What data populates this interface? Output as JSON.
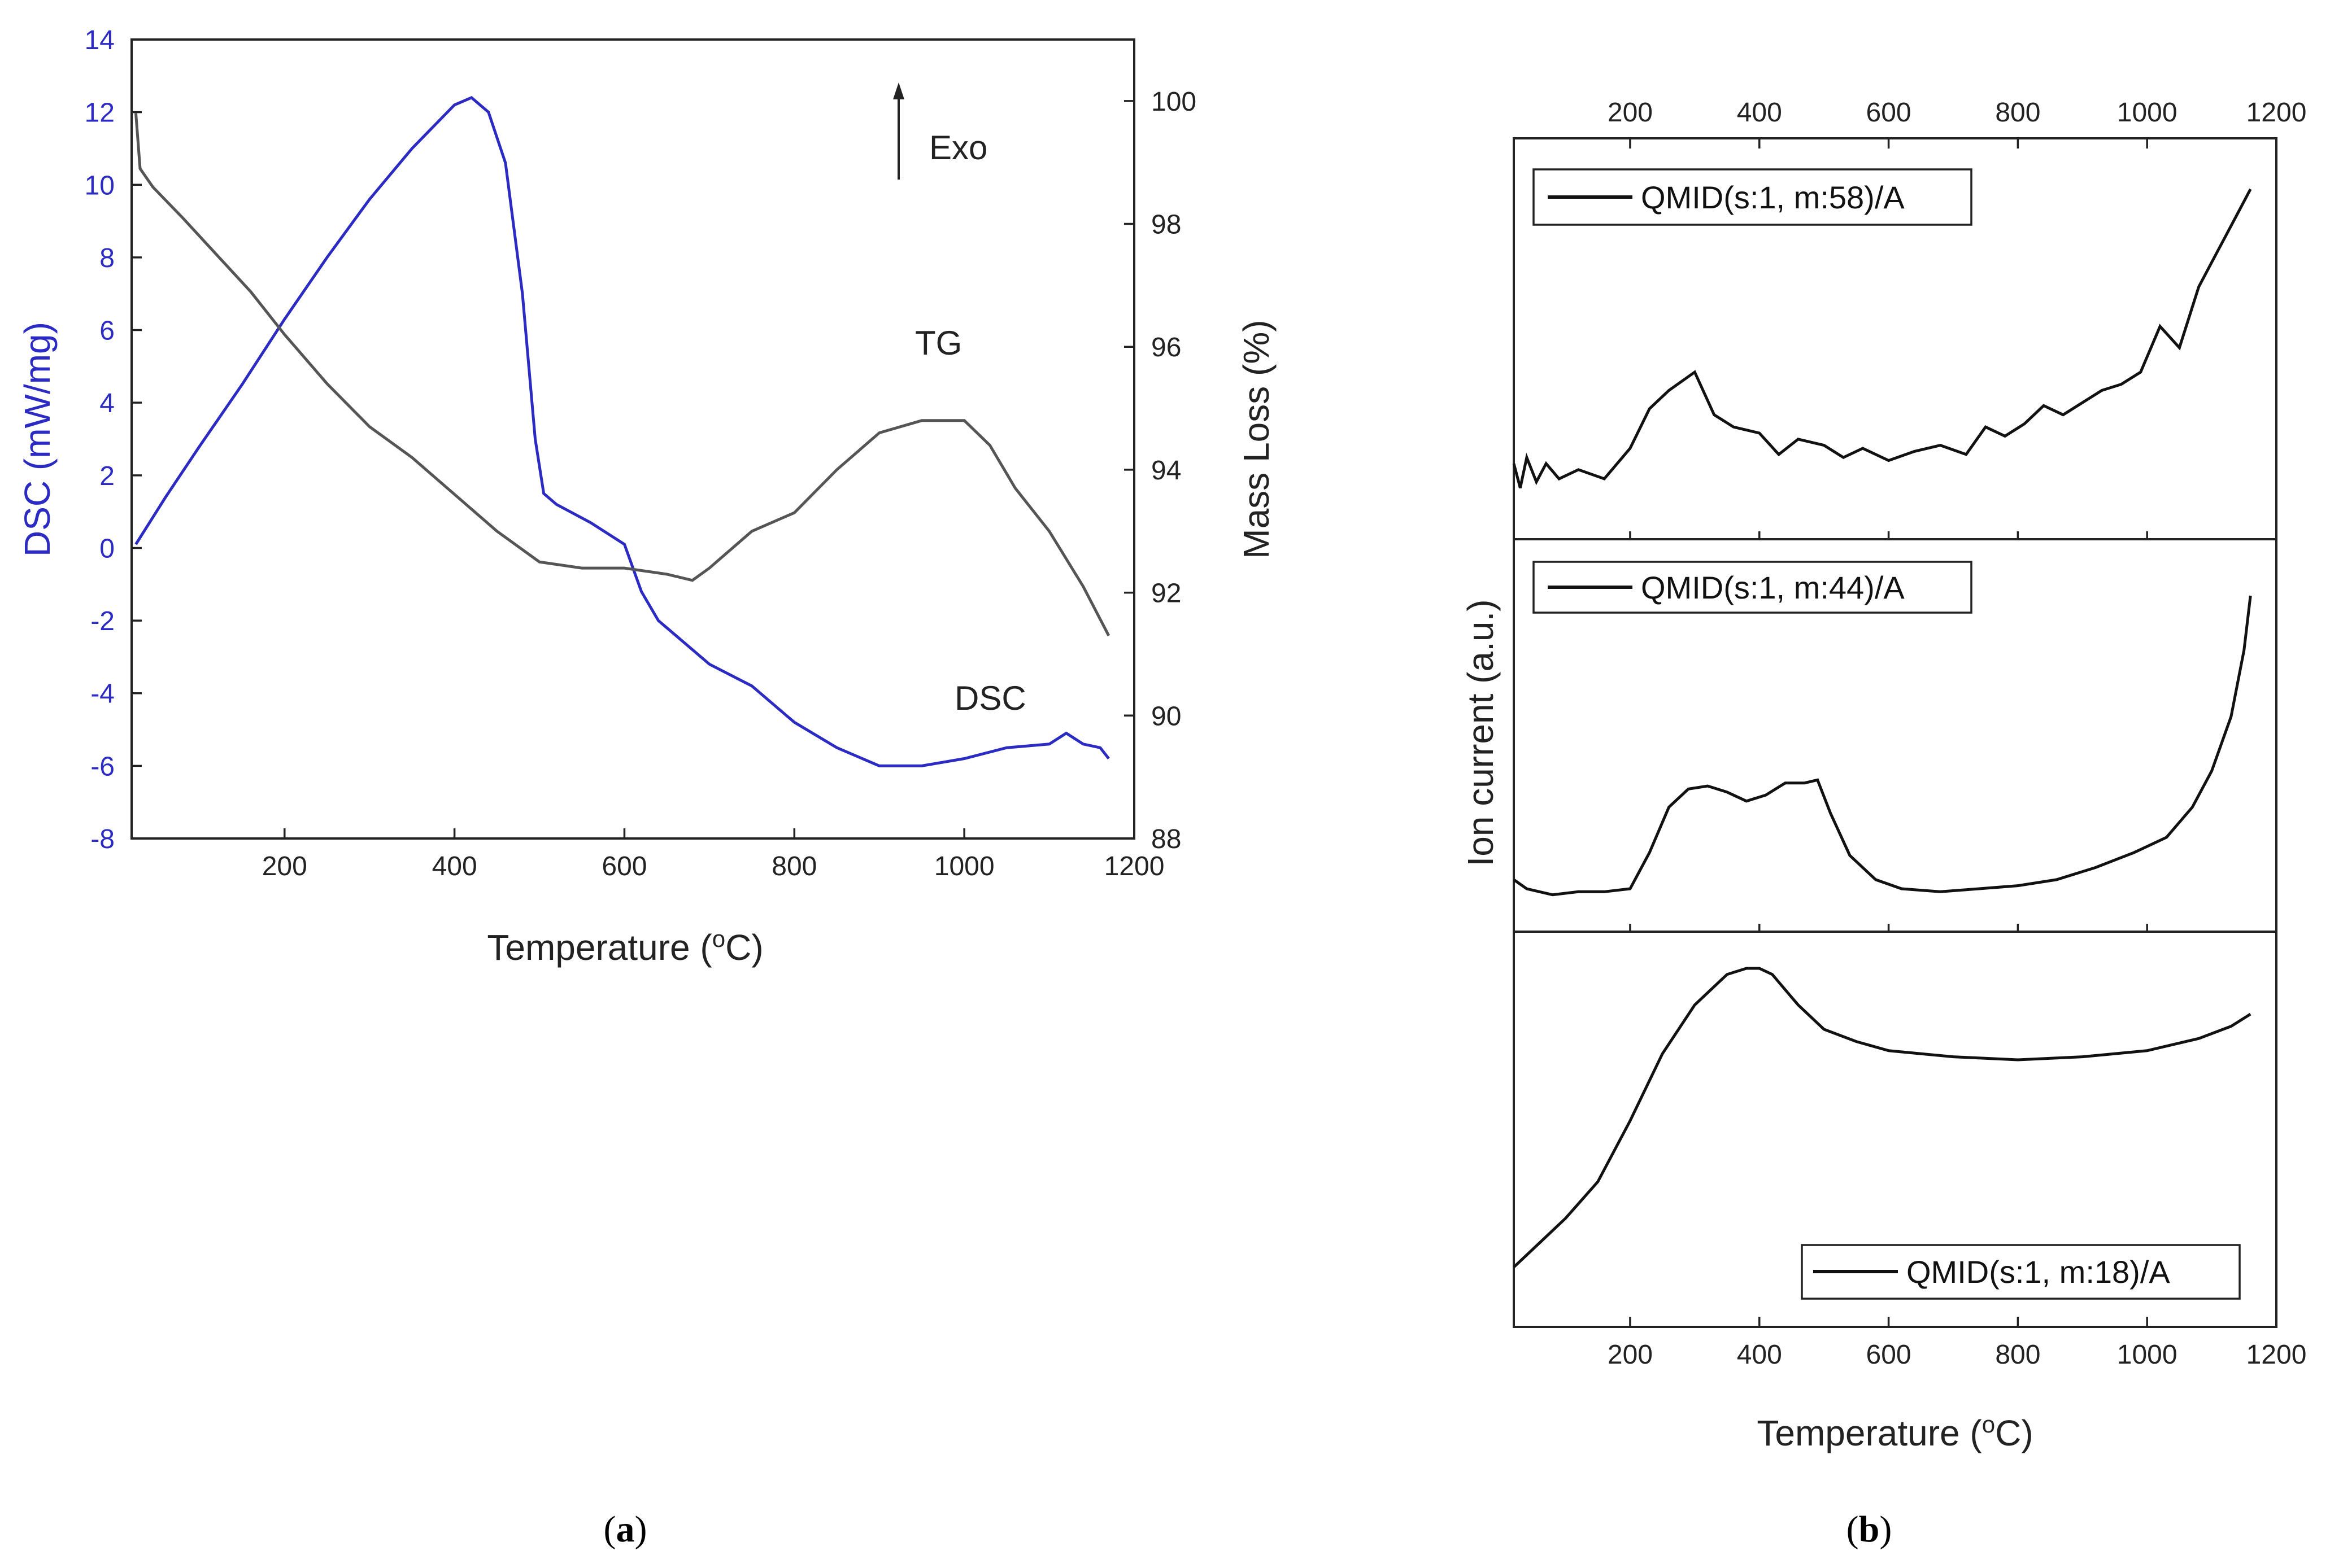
{
  "chart_data": [
    {
      "type": "line",
      "panel": "a",
      "caption": [
        "(",
        "a",
        ")"
      ],
      "xlabel": "Temperature (",
      "xlabel_sup": "o",
      "xlabel_end": "C)",
      "ylabel": "DSC (mW/mg)",
      "y2label": "Mass Loss (%)",
      "xlim": [
        20,
        1200
      ],
      "ylim": [
        -8,
        14
      ],
      "y2lim": [
        88,
        101
      ],
      "x_ticks": [
        200,
        400,
        600,
        800,
        1000,
        1200
      ],
      "y_ticks": [
        -8,
        -6,
        -4,
        -2,
        0,
        2,
        4,
        6,
        8,
        10,
        12,
        14
      ],
      "y2_ticks": [
        88,
        90,
        92,
        94,
        96,
        98,
        100
      ],
      "annotations": {
        "exo": "Exo",
        "tg": "TG",
        "dsc": "DSC"
      },
      "colors": {
        "dsc": "#2b2bc4",
        "tg": "#555555"
      },
      "series": [
        {
          "name": "DSC",
          "axis": "left",
          "x": [
            25,
            60,
            100,
            150,
            200,
            250,
            300,
            350,
            400,
            420,
            440,
            460,
            480,
            495,
            505,
            520,
            560,
            600,
            620,
            640,
            660,
            700,
            750,
            800,
            850,
            900,
            950,
            1000,
            1050,
            1100,
            1120,
            1140,
            1160,
            1170
          ],
          "values": [
            0.1,
            1.4,
            2.8,
            4.5,
            6.3,
            8.0,
            9.6,
            11.0,
            12.2,
            12.4,
            12.0,
            10.6,
            7.0,
            3.0,
            1.5,
            1.2,
            0.7,
            0.1,
            -1.2,
            -2.0,
            -2.4,
            -3.2,
            -3.8,
            -4.8,
            -5.5,
            -6.0,
            -6.0,
            -5.8,
            -5.5,
            -5.4,
            -5.1,
            -5.4,
            -5.5,
            -5.8
          ]
        },
        {
          "name": "TG",
          "axis": "right",
          "x": [
            25,
            30,
            45,
            80,
            120,
            160,
            200,
            250,
            300,
            350,
            400,
            450,
            500,
            550,
            600,
            650,
            680,
            700,
            750,
            800,
            850,
            900,
            950,
            1000,
            1030,
            1060,
            1100,
            1140,
            1170
          ],
          "values": [
            99.8,
            98.9,
            98.6,
            98.1,
            97.5,
            96.9,
            96.2,
            95.4,
            94.7,
            94.2,
            93.6,
            93.0,
            92.5,
            92.4,
            92.4,
            92.3,
            92.2,
            92.4,
            93.0,
            93.3,
            94.0,
            94.6,
            94.8,
            94.8,
            94.4,
            93.7,
            93.0,
            92.1,
            91.3
          ]
        }
      ]
    },
    {
      "type": "line",
      "panel": "b",
      "caption": [
        "(",
        "b",
        ")"
      ],
      "xlabel": "Temperature (",
      "xlabel_sup": "o",
      "xlabel_end": "C)",
      "ylabel": "Ion current (a.u.)",
      "xlim": [
        20,
        1200
      ],
      "x_ticks": [
        200,
        400,
        600,
        800,
        1000,
        1200
      ],
      "subplots": [
        {
          "legend": "QMID(s:1, m:58)/A",
          "legend_position": "top-left",
          "x": [
            20,
            30,
            40,
            55,
            70,
            90,
            120,
            160,
            200,
            230,
            260,
            300,
            330,
            360,
            400,
            430,
            460,
            500,
            530,
            560,
            600,
            640,
            680,
            720,
            750,
            780,
            810,
            840,
            870,
            900,
            930,
            960,
            990,
            1020,
            1050,
            1080,
            1110,
            1140,
            1160
          ],
          "values": [
            0.1,
            0.02,
            0.12,
            0.04,
            0.1,
            0.05,
            0.08,
            0.05,
            0.15,
            0.28,
            0.34,
            0.4,
            0.26,
            0.22,
            0.2,
            0.13,
            0.18,
            0.16,
            0.12,
            0.15,
            0.11,
            0.14,
            0.16,
            0.13,
            0.22,
            0.19,
            0.23,
            0.29,
            0.26,
            0.3,
            0.34,
            0.36,
            0.4,
            0.55,
            0.48,
            0.68,
            0.8,
            0.92,
            1.0
          ]
        },
        {
          "legend": "QMID(s:1, m:44)/A",
          "legend_position": "top-left",
          "x": [
            20,
            40,
            80,
            120,
            160,
            200,
            230,
            260,
            290,
            320,
            350,
            380,
            410,
            440,
            470,
            490,
            510,
            540,
            580,
            620,
            680,
            740,
            800,
            860,
            920,
            980,
            1030,
            1070,
            1100,
            1130,
            1150,
            1160
          ],
          "values": [
            0.06,
            0.03,
            0.01,
            0.02,
            0.02,
            0.03,
            0.15,
            0.3,
            0.36,
            0.37,
            0.35,
            0.32,
            0.34,
            0.38,
            0.38,
            0.39,
            0.28,
            0.14,
            0.06,
            0.03,
            0.02,
            0.03,
            0.04,
            0.06,
            0.1,
            0.15,
            0.2,
            0.3,
            0.42,
            0.6,
            0.82,
            1.0
          ]
        },
        {
          "legend": "QMID(s:1, m:18)/A",
          "legend_position": "bottom-right",
          "x": [
            20,
            60,
            100,
            150,
            200,
            250,
            300,
            350,
            380,
            400,
            420,
            460,
            500,
            550,
            600,
            700,
            800,
            900,
            1000,
            1080,
            1130,
            1160
          ],
          "values": [
            0.02,
            0.1,
            0.18,
            0.3,
            0.5,
            0.72,
            0.88,
            0.98,
            1.0,
            1.0,
            0.98,
            0.88,
            0.8,
            0.76,
            0.73,
            0.71,
            0.7,
            0.71,
            0.73,
            0.77,
            0.81,
            0.85
          ]
        }
      ]
    }
  ]
}
